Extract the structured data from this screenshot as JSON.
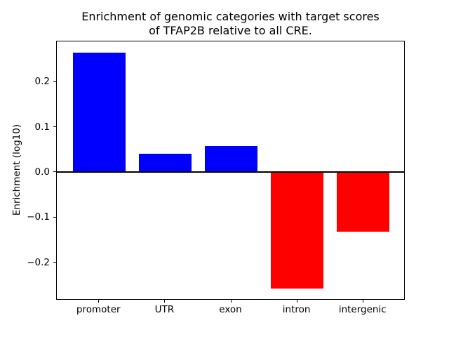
{
  "figure": {
    "title": "Enrichment of genomic categories with target scores\nof TFAP2B relative to all CRE.",
    "ylabel": "Enrichment (log10)"
  },
  "chart_data": {
    "type": "bar",
    "title": "Enrichment of genomic categories with target scores of TFAP2B relative to all CRE.",
    "xlabel": "",
    "ylabel": "Enrichment (log10)",
    "categories": [
      "promoter",
      "UTR",
      "exon",
      "intron",
      "intergenic"
    ],
    "values": [
      0.265,
      0.041,
      0.058,
      -0.257,
      -0.132
    ],
    "positive_color": "#0000ff",
    "negative_color": "#ff0000",
    "ylim": [
      -0.284,
      0.29
    ],
    "yticks": [
      -0.2,
      -0.1,
      0.0,
      0.1,
      0.2
    ],
    "ytick_labels": [
      "−0.2",
      "−0.1",
      "0.0",
      "0.1",
      "0.2"
    ],
    "bar_width_fraction": 0.8,
    "x_margin_units": 0.64,
    "grid": false,
    "legend": null,
    "zero_line": true,
    "zero_line_color": "#000000"
  }
}
